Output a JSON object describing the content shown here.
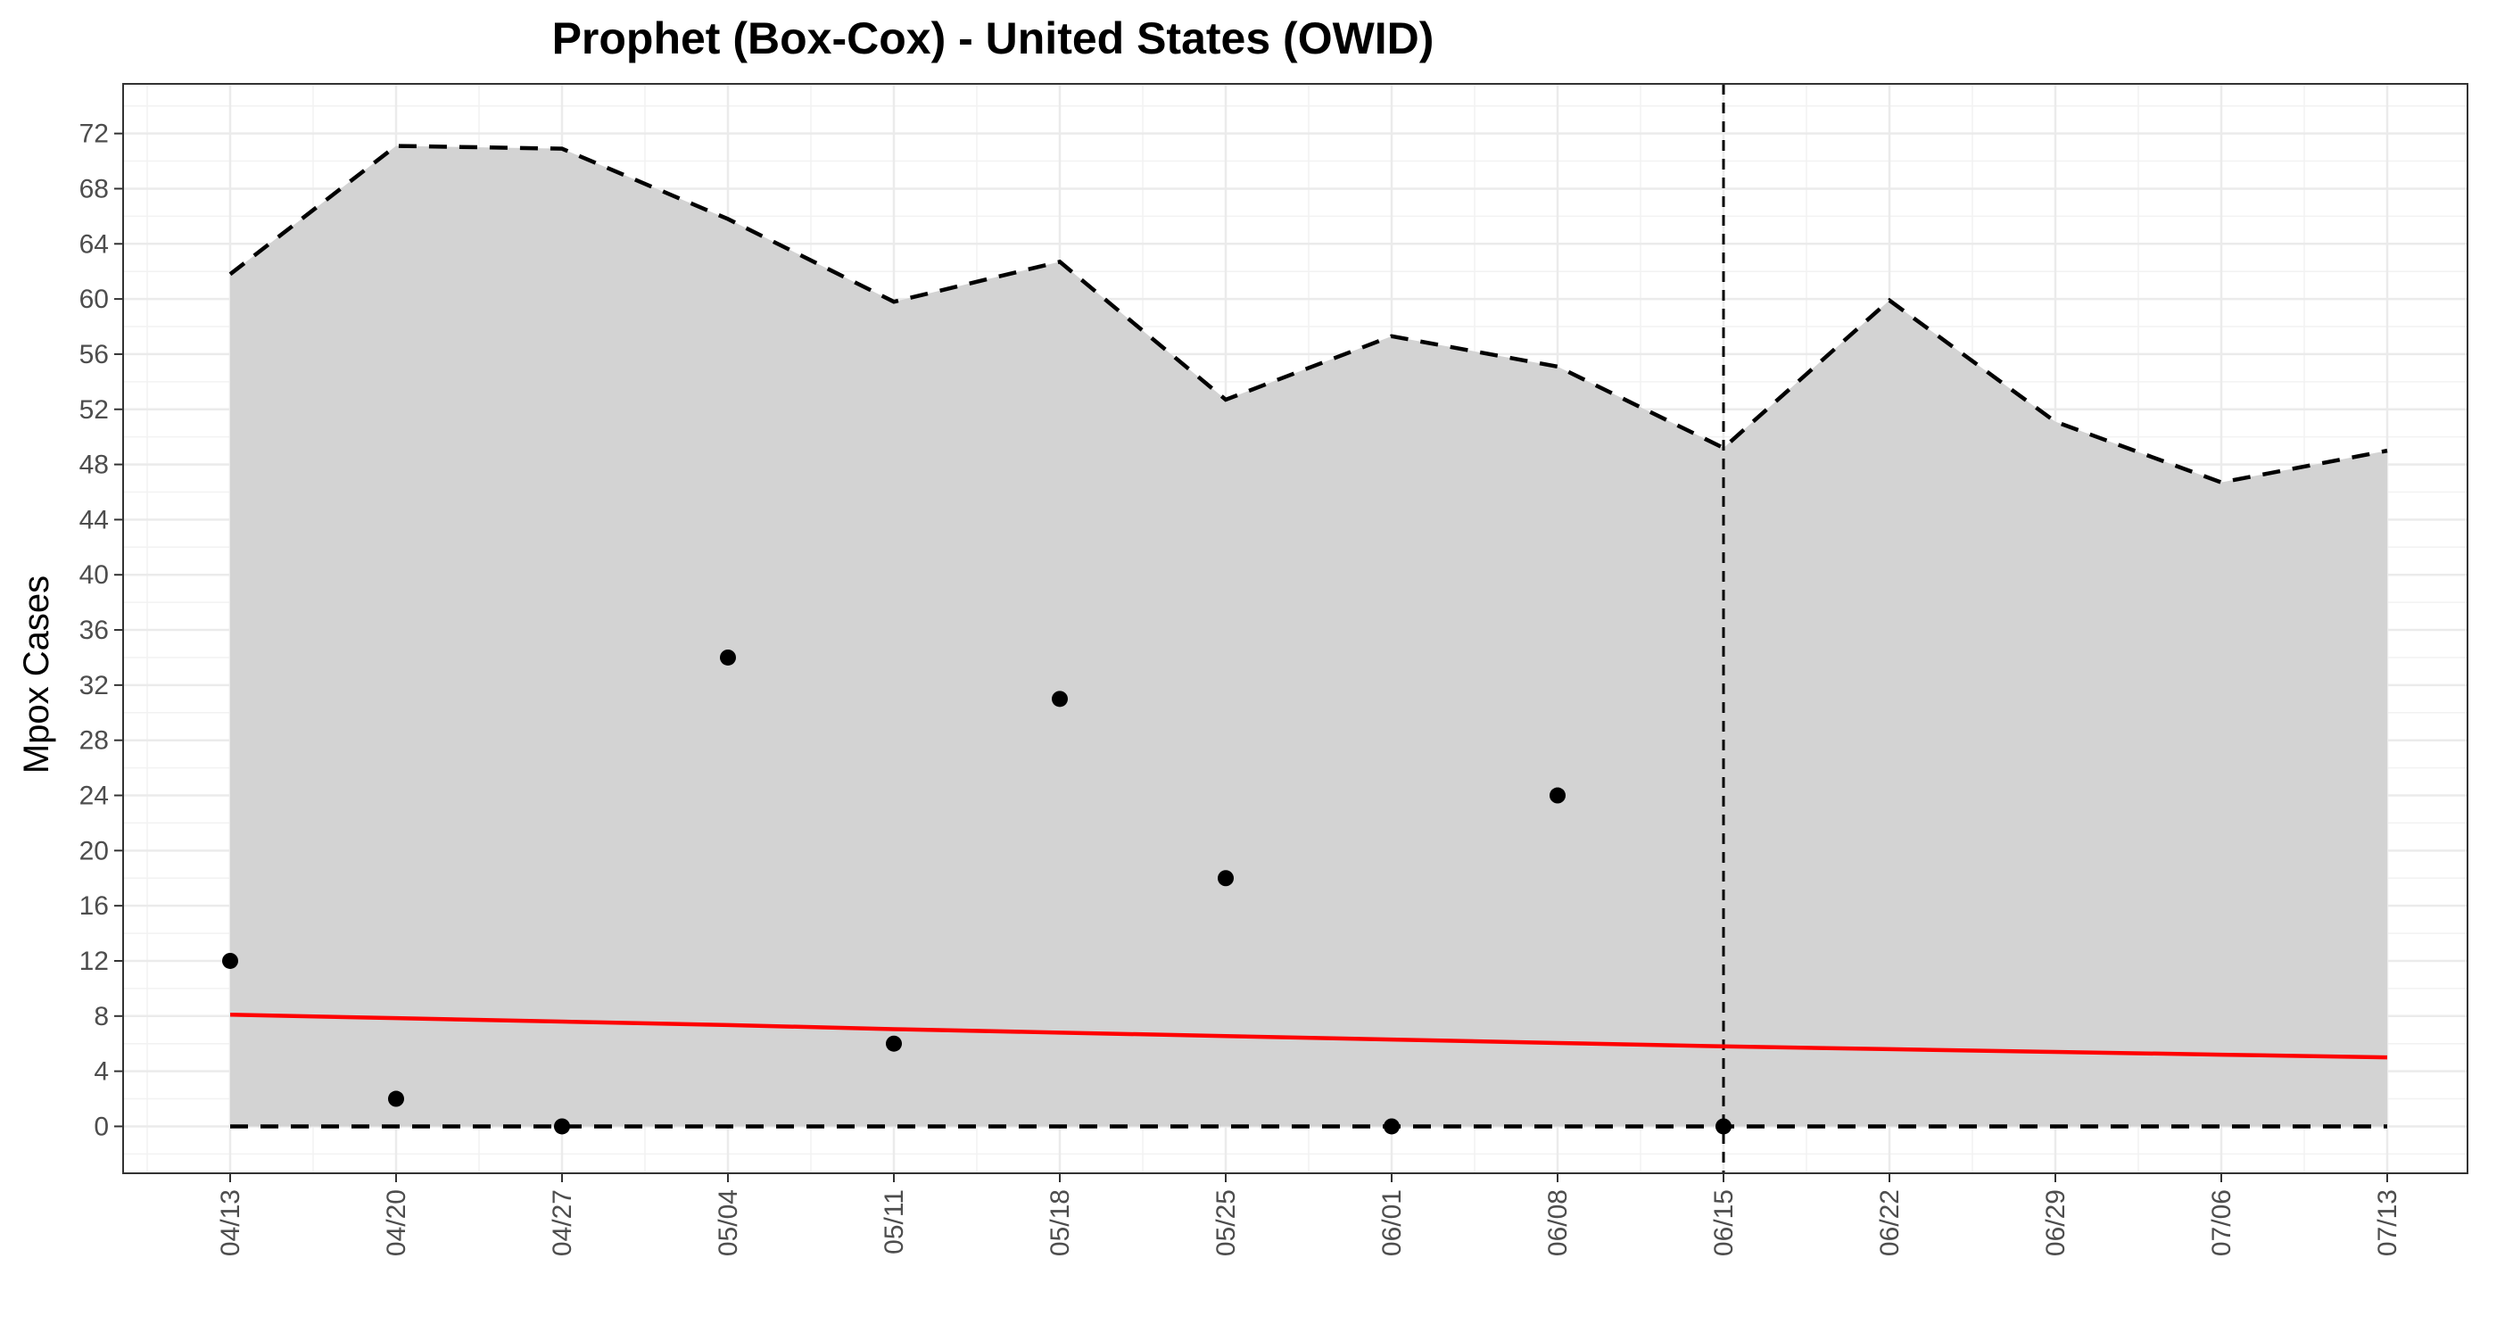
{
  "chart_data": {
    "type": "line",
    "title": "Prophet (Box-Cox) - United States (OWID)",
    "xlabel": "",
    "ylabel": "Mpox Cases",
    "x": [
      "04/13",
      "04/20",
      "04/27",
      "05/04",
      "05/11",
      "05/18",
      "05/25",
      "06/01",
      "06/08",
      "06/15",
      "06/22",
      "06/29",
      "07/06",
      "07/13"
    ],
    "ylim": [
      -3.4,
      75.6
    ],
    "yticks": [
      0,
      4,
      8,
      12,
      16,
      20,
      24,
      28,
      32,
      36,
      40,
      44,
      48,
      52,
      56,
      60,
      64,
      68,
      72
    ],
    "grid": true,
    "legend": "none",
    "forecast_start": "06/15",
    "interval": {
      "upper": [
        61.8,
        71.1,
        70.9,
        65.8,
        59.8,
        62.7,
        52.7,
        57.3,
        55.1,
        49.2,
        59.9,
        51.1,
        46.7,
        49.0
      ],
      "lower": [
        0,
        0,
        0,
        0,
        0,
        0,
        0,
        0,
        0,
        0,
        0,
        0,
        0,
        0
      ],
      "fill": "#d3d3d3"
    },
    "prediction": {
      "values": [
        8.1,
        7.85,
        7.6,
        7.35,
        7.05,
        6.8,
        6.55,
        6.3,
        6.05,
        5.8,
        5.6,
        5.4,
        5.2,
        5.0
      ],
      "color": "#ff0000"
    },
    "observed": {
      "x": [
        "04/13",
        "04/20",
        "04/27",
        "05/04",
        "05/11",
        "05/18",
        "05/25",
        "06/01",
        "06/08",
        "06/15"
      ],
      "values": [
        12,
        2,
        0,
        34,
        6,
        31,
        18,
        0,
        24,
        0
      ],
      "color": "#000000"
    }
  }
}
